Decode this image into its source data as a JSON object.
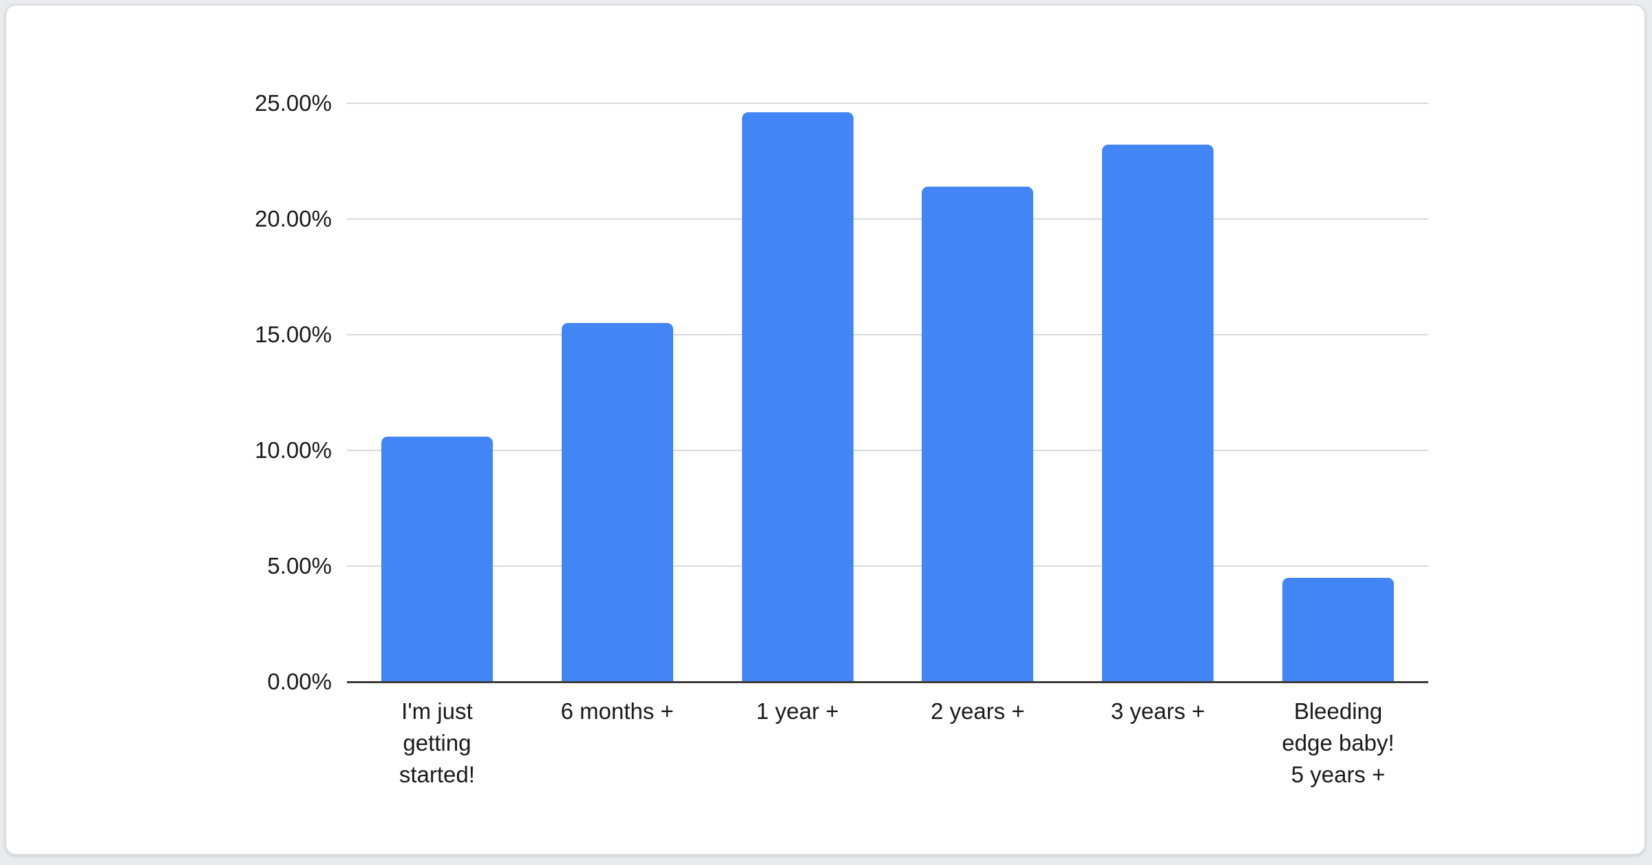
{
  "page": {
    "background_color": "#e9ebee"
  },
  "card": {
    "background_color": "#ffffff",
    "border_color": "#d9dbdf"
  },
  "chart_data": {
    "type": "bar",
    "title": "",
    "xlabel": "",
    "ylabel": "",
    "categories": [
      "I'm just getting started!",
      "6 months +",
      "1 year +",
      "2 years +",
      "3 years +",
      "Bleeding edge baby! 5 years +"
    ],
    "category_lines": [
      [
        "I'm just",
        "getting",
        "started!"
      ],
      [
        "6 months +"
      ],
      [
        "1 year +"
      ],
      [
        "2 years +"
      ],
      [
        "3 years +"
      ],
      [
        "Bleeding",
        "edge baby!",
        "5 years +"
      ]
    ],
    "values": [
      10.6,
      15.5,
      24.6,
      21.4,
      23.2,
      4.5
    ],
    "unit": "%",
    "ylim": [
      0,
      25
    ],
    "y_tick_labels": [
      "0.00%",
      "5.00%",
      "10.00%",
      "15.00%",
      "20.00%",
      "25.00%"
    ],
    "grid": true,
    "legend_position": "none",
    "bar_color": "#4285f4",
    "gridline_color": "#d9d9d9",
    "axis_line_color": "#3c3c3c",
    "label_color": "#1a1a1a"
  }
}
